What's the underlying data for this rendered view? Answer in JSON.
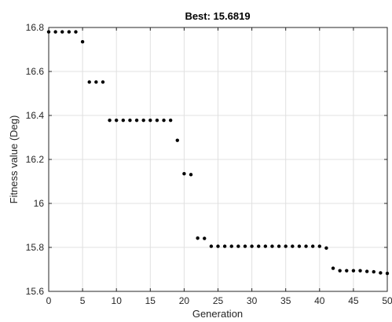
{
  "chart_data": {
    "type": "scatter",
    "title": "Best: 15.6819",
    "xlabel": "Generation",
    "ylabel": "Fitness value (Deg)",
    "xlim": [
      0,
      50
    ],
    "ylim": [
      15.6,
      16.8
    ],
    "xticks": [
      0,
      5,
      10,
      15,
      20,
      25,
      30,
      35,
      40,
      45,
      50
    ],
    "xtick_labels": [
      "0",
      "5",
      "10",
      "15",
      "20",
      "25",
      "30",
      "35",
      "40",
      "45",
      "50"
    ],
    "yticks": [
      15.6,
      15.8,
      16.0,
      16.2,
      16.4,
      16.6,
      16.8
    ],
    "ytick_labels": [
      "15.6",
      "15.8",
      "16",
      "16.2",
      "16.4",
      "16.6",
      "16.8"
    ],
    "grid": true,
    "marker_color": "#000000",
    "series": [
      {
        "x": [
          0,
          1,
          2,
          3,
          4,
          5,
          6,
          7,
          8,
          9,
          10,
          11,
          12,
          13,
          14,
          15,
          16,
          17,
          18,
          19,
          20,
          21,
          22,
          23,
          24,
          25,
          26,
          27,
          28,
          29,
          30,
          31,
          32,
          33,
          34,
          35,
          36,
          37,
          38,
          39,
          40,
          41,
          42,
          43,
          44,
          45,
          46,
          47,
          48,
          49,
          50
        ],
        "y": [
          16.78,
          16.78,
          16.78,
          16.78,
          16.78,
          16.735,
          16.552,
          16.552,
          16.552,
          16.378,
          16.378,
          16.378,
          16.378,
          16.378,
          16.378,
          16.378,
          16.378,
          16.378,
          16.378,
          16.287,
          16.135,
          16.131,
          15.842,
          15.841,
          15.805,
          15.805,
          15.805,
          15.805,
          15.805,
          15.805,
          15.805,
          15.805,
          15.805,
          15.805,
          15.805,
          15.805,
          15.805,
          15.805,
          15.805,
          15.805,
          15.805,
          15.797,
          15.705,
          15.694,
          15.694,
          15.694,
          15.694,
          15.691,
          15.689,
          15.684,
          15.682
        ]
      }
    ]
  }
}
